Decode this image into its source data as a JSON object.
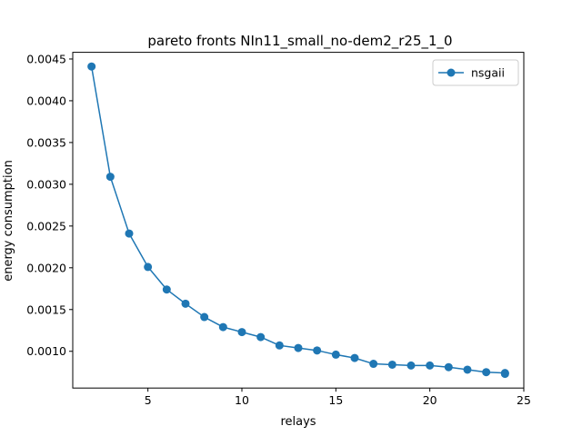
{
  "chart_data": {
    "type": "line",
    "title": "pareto fronts NIn11_small_no-dem2_r25_1_0",
    "xlabel": "relays",
    "ylabel": "energy consumption",
    "xlim": [
      1.0,
      25.0
    ],
    "ylim": [
      0.00056,
      0.00458
    ],
    "xticks": [
      5,
      10,
      15,
      20,
      25
    ],
    "xtick_labels": [
      "5",
      "10",
      "15",
      "20",
      "25"
    ],
    "yticks": [
      0.001,
      0.0015,
      0.002,
      0.0025,
      0.003,
      0.0035,
      0.004,
      0.0045
    ],
    "ytick_labels": [
      "0.0010",
      "0.0015",
      "0.0020",
      "0.0025",
      "0.0030",
      "0.0035",
      "0.0040",
      "0.0045"
    ],
    "grid": false,
    "legend_position": "top-right",
    "series": [
      {
        "name": "nsgaii",
        "color": "#1f77b4",
        "marker": "circle",
        "x": [
          2,
          3,
          4,
          5,
          6,
          7,
          8,
          9,
          10,
          11,
          12,
          13,
          14,
          15,
          16,
          17,
          18,
          19,
          20,
          21,
          22,
          23,
          24,
          24
        ],
        "y": [
          0.00441,
          0.00309,
          0.00241,
          0.00201,
          0.00174,
          0.00157,
          0.00141,
          0.00129,
          0.00123,
          0.00117,
          0.00107,
          0.00104,
          0.00101,
          0.00096,
          0.00092,
          0.00085,
          0.00084,
          0.00083,
          0.00083,
          0.00081,
          0.00078,
          0.00075,
          0.00074,
          0.00073
        ]
      }
    ]
  }
}
